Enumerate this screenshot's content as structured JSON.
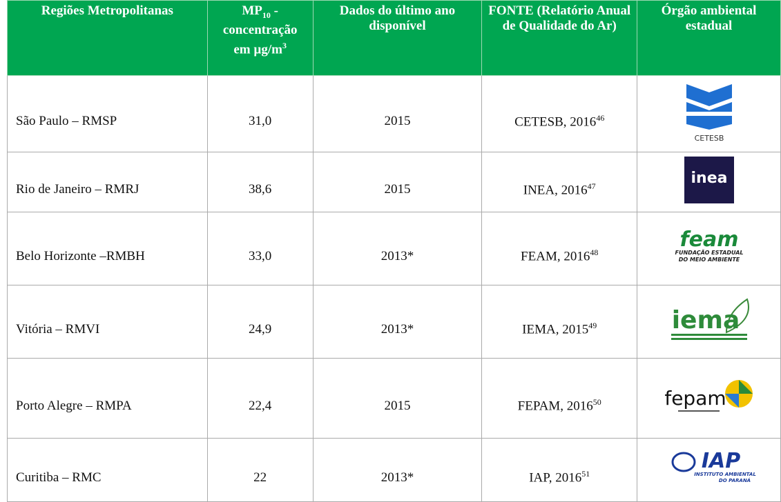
{
  "table": {
    "header": [
      {
        "text": "Regiões Metropolitanas"
      },
      {
        "text": "MP",
        "sub": "10",
        "rest": " - concentração em µg/m",
        "sup": "3"
      },
      {
        "text": "Dados do último ano disponível"
      },
      {
        "text": "FONTE (Relatório Anual de Qualidade do Ar)"
      },
      {
        "text": "Órgão ambiental estadual"
      }
    ],
    "rows": [
      {
        "region": "São Paulo – RMSP",
        "value": "31,0",
        "year": "2015",
        "source": "CETESB, 2016",
        "ref": "46",
        "logo": [
          "CETESB"
        ]
      },
      {
        "region": "Rio de Janeiro – RMRJ",
        "value": "38,6",
        "year": "2015",
        "source": "INEA, 2016",
        "ref": "47",
        "logo": [
          "inea"
        ]
      },
      {
        "region": "Belo Horizonte –RMBH",
        "value": "33,0",
        "year": "2013*",
        "source": "FEAM, 2016",
        "ref": "48",
        "logo": [
          "feam",
          "FUNDAÇÃO ESTADUAL",
          "DO MEIO AMBIENTE"
        ]
      },
      {
        "region": "Vitória – RMVI",
        "value": "24,9",
        "year": "2013*",
        "source": "IEMA, 2015",
        "ref": "49",
        "logo": [
          "iema"
        ]
      },
      {
        "region": "Porto Alegre – RMPA",
        "value": "22,4",
        "year": "2015",
        "source": "FEPAM, 2016",
        "ref": "50",
        "logo": [
          "fepam"
        ]
      },
      {
        "region": "Curitiba – RMC",
        "value": "22",
        "year": "2013*",
        "source": "IAP, 2016",
        "ref": "51",
        "logo": [
          "IAP",
          "INSTITUTO AMBIENTAL",
          "DO PARANÁ"
        ]
      }
    ]
  }
}
